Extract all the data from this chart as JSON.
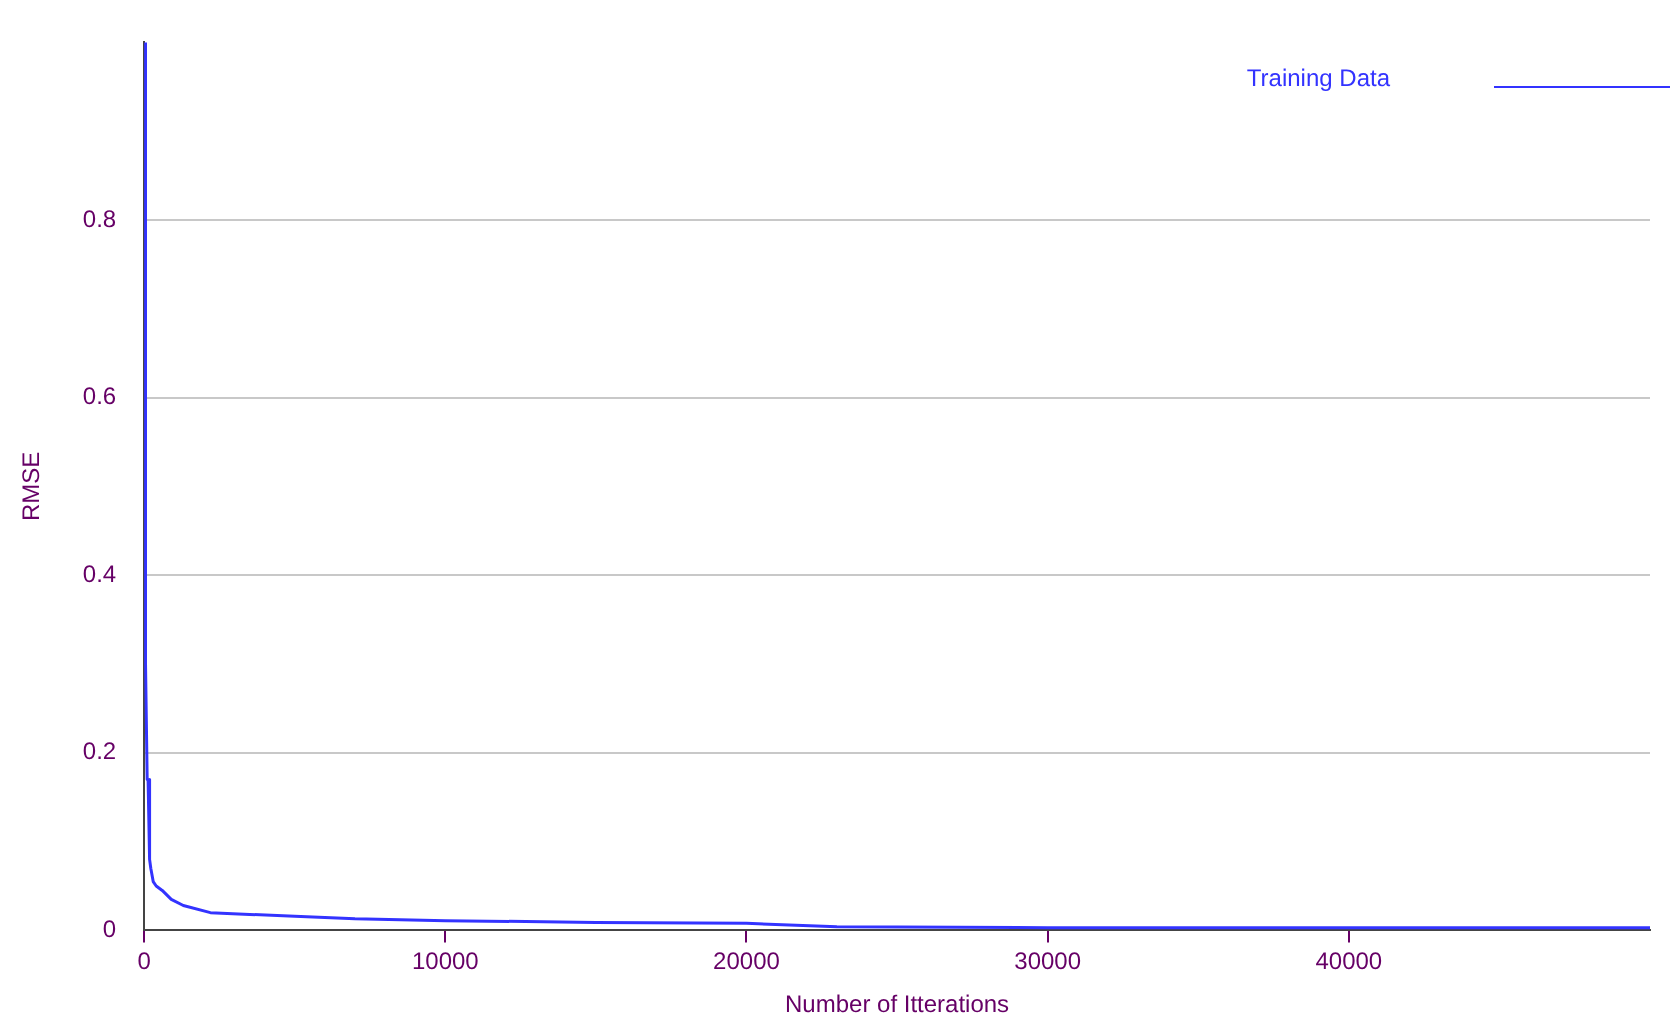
{
  "chart_data": {
    "type": "line",
    "xlabel": "Number of Itterations",
    "ylabel": "RMSE",
    "xlim": [
      0,
      50000
    ],
    "xticks": [
      0,
      10000,
      20000,
      30000,
      40000
    ],
    "ylim": [
      0,
      1
    ],
    "yticks": [
      0,
      0.2,
      0.4,
      0.6,
      0.8
    ],
    "grid": "y",
    "legend": "top right",
    "marker": "none",
    "line_style": "solid",
    "series": [
      {
        "name": "Training Data",
        "color": "#3333ff",
        "x": [
          0,
          30,
          60,
          100,
          130,
          180,
          220,
          300,
          400,
          600,
          900,
          1300,
          2200,
          3500,
          5000,
          7000,
          10000,
          15000,
          20000,
          23000,
          30000,
          40000,
          50000
        ],
        "values": [
          1.0,
          0.3,
          0.3,
          0.17,
          0.17,
          0.08,
          0.07,
          0.055,
          0.05,
          0.045,
          0.035,
          0.028,
          0.02,
          0.018,
          0.016,
          0.013,
          0.011,
          0.009,
          0.008,
          0.004,
          0.003,
          0.003,
          0.003
        ]
      }
    ]
  }
}
